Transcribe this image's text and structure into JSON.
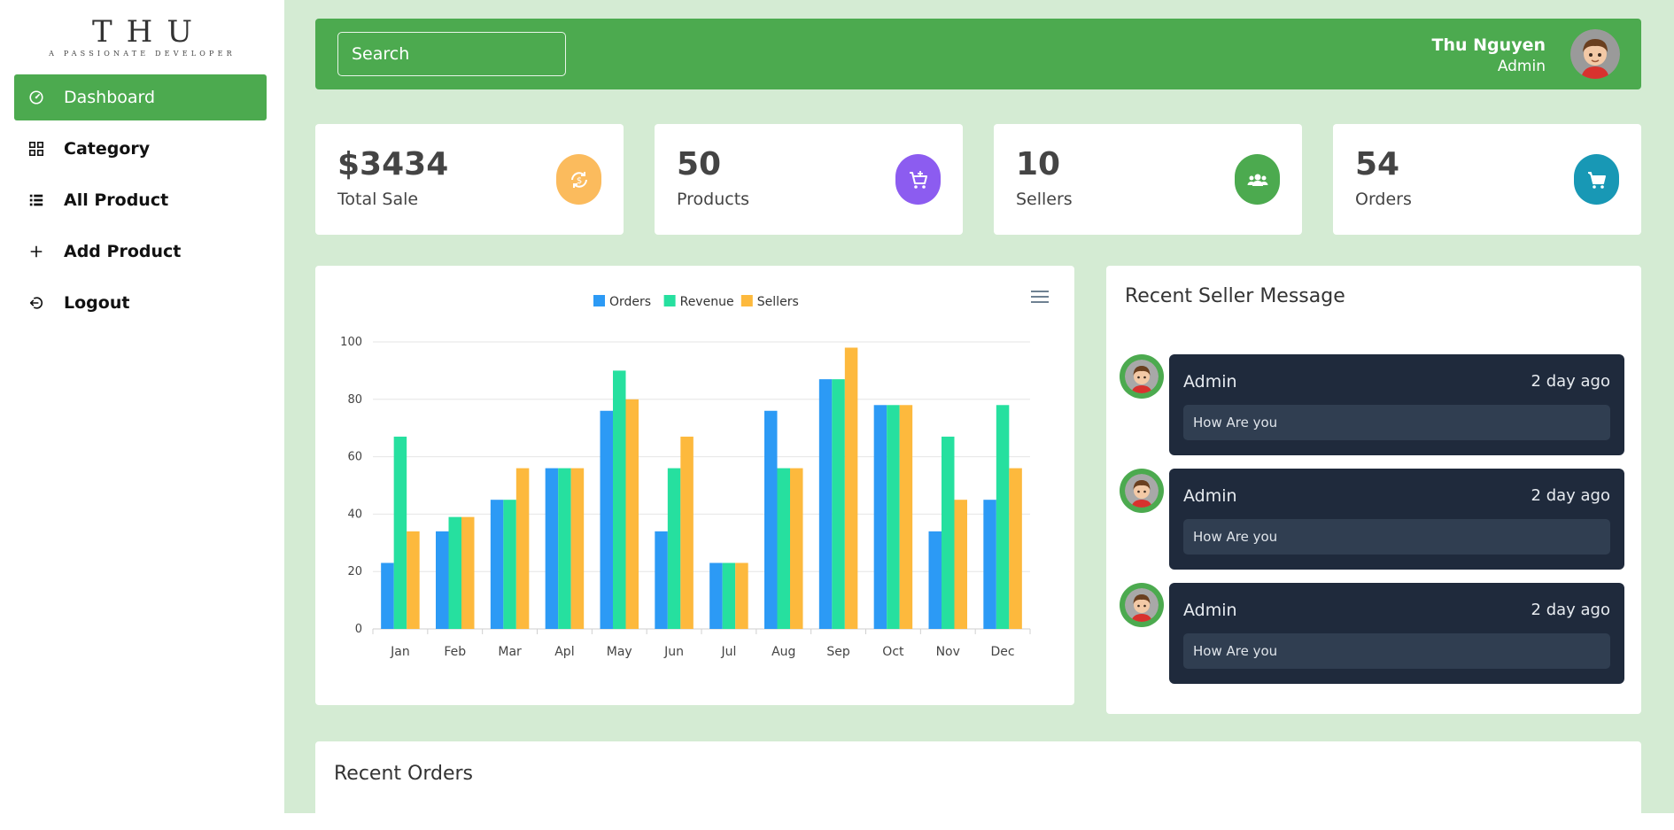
{
  "brand": {
    "name": "THU",
    "tagline": "A PASSIONATE DEVELOPER"
  },
  "sidebar": {
    "items": [
      {
        "label": "Dashboard",
        "icon": "dashboard-icon",
        "active": true
      },
      {
        "label": "Category",
        "icon": "grid-icon"
      },
      {
        "label": "All Product",
        "icon": "list-icon"
      },
      {
        "label": "Add Product",
        "icon": "plus-icon"
      },
      {
        "label": "Logout",
        "icon": "logout-icon"
      }
    ]
  },
  "header": {
    "search_placeholder": "Search",
    "user_name": "Thu Nguyen",
    "user_role": "Admin",
    "accent": "#4caa4f"
  },
  "stats": [
    {
      "value": "$3434",
      "label": "Total Sale",
      "icon": "currency-exchange-icon",
      "color": "#fbbb5d"
    },
    {
      "value": "50",
      "label": "Products",
      "icon": "cart-plus-icon",
      "color": "#8c5cf0"
    },
    {
      "value": "10",
      "label": "Sellers",
      "icon": "users-icon",
      "color": "#4caa4f"
    },
    {
      "value": "54",
      "label": "Orders",
      "icon": "cart-icon",
      "color": "#1898b5"
    }
  ],
  "chart_data": {
    "type": "bar",
    "categories": [
      "Jan",
      "Feb",
      "Mar",
      "Apl",
      "May",
      "Jun",
      "Jul",
      "Aug",
      "Sep",
      "Oct",
      "Nov",
      "Dec"
    ],
    "series": [
      {
        "name": "Orders",
        "color": "#2c9af5",
        "values": [
          23,
          34,
          45,
          56,
          76,
          34,
          23,
          76,
          87,
          78,
          34,
          45
        ]
      },
      {
        "name": "Revenue",
        "color": "#26e09f",
        "values": [
          67,
          39,
          45,
          56,
          90,
          56,
          23,
          56,
          87,
          78,
          67,
          78
        ]
      },
      {
        "name": "Sellers",
        "color": "#fdb93d",
        "values": [
          34,
          39,
          56,
          56,
          80,
          67,
          23,
          56,
          98,
          78,
          45,
          56
        ]
      }
    ],
    "ylim": [
      0,
      100
    ],
    "yticks": [
      0,
      20,
      40,
      60,
      80,
      100
    ],
    "legend": "top-center",
    "grid": true
  },
  "messages": {
    "title": "Recent Seller Message",
    "items": [
      {
        "name": "Admin",
        "time": "2 day ago",
        "text": "How Are you"
      },
      {
        "name": "Admin",
        "time": "2 day ago",
        "text": "How Are you"
      },
      {
        "name": "Admin",
        "time": "2 day ago",
        "text": "How Are you"
      }
    ]
  },
  "orders": {
    "title": "Recent Orders"
  }
}
